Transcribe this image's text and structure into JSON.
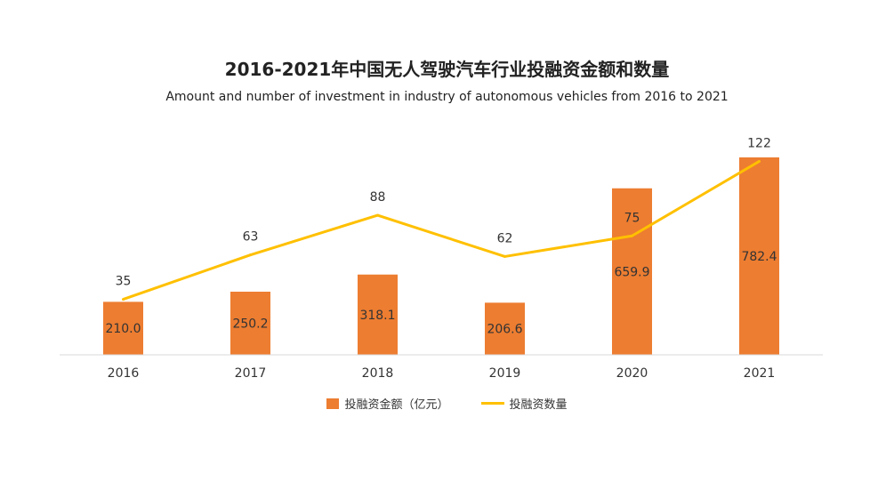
{
  "chart_data": {
    "type": "bar",
    "title": "2016-2021年中国无人驾驶汽车行业投融资金额和数量",
    "subtitle": "Amount and number of investment in industry of autonomous vehicles from 2016 to 2021",
    "categories": [
      "2016",
      "2017",
      "2018",
      "2019",
      "2020",
      "2021"
    ],
    "series": [
      {
        "name": "投融资金额（亿元）",
        "type": "bar",
        "values": [
          210.0,
          250.2,
          318.1,
          206.6,
          659.9,
          782.4
        ],
        "labels": [
          "210.0",
          "250.2",
          "318.1",
          "206.6",
          "659.9",
          "782.4"
        ]
      },
      {
        "name": "投融资数量",
        "type": "line",
        "values": [
          35,
          63,
          88,
          62,
          75,
          122
        ],
        "labels": [
          "35",
          "63",
          "88",
          "62",
          "75",
          "122"
        ]
      }
    ],
    "ylim_bar": [
      0,
      800
    ],
    "ylim_line": [
      0,
      125
    ],
    "grid": false,
    "legend_position": "bottom",
    "colors": {
      "bar": "#ED7D31",
      "line": "#FFC000",
      "axis": "#D9D9D9"
    }
  }
}
